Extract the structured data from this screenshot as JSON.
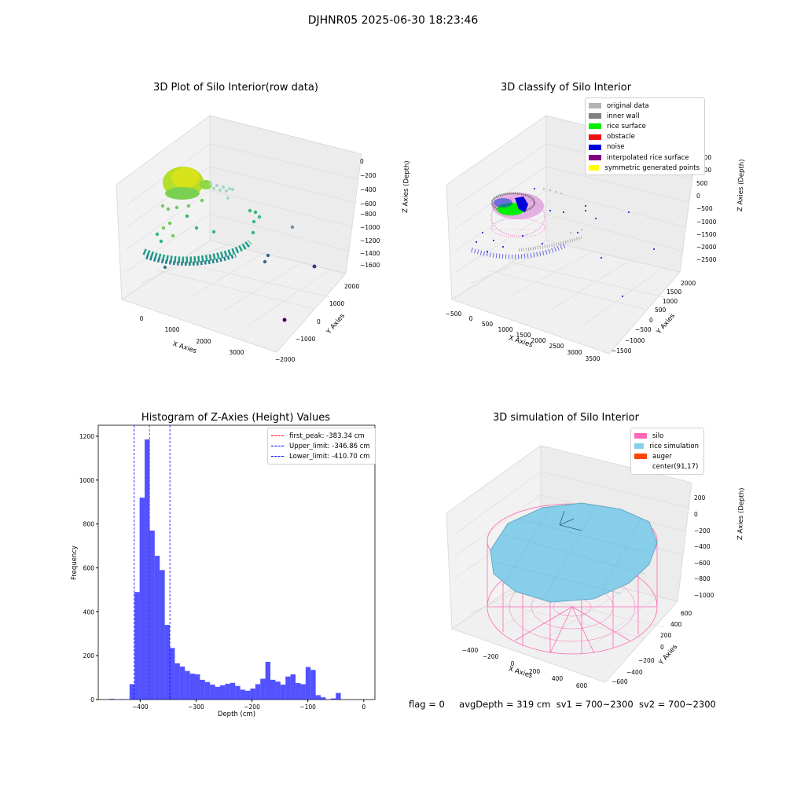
{
  "figure": {
    "title": "DJHNR05 2025-06-30 18:23:46",
    "footer": {
      "flag": "flag = 0",
      "avg_depth": "avgDepth = 319 cm",
      "sv1": "sv1 = 700~2300",
      "sv2": "sv2 = 700~2300"
    }
  },
  "chart_data": [
    {
      "type": "scatter",
      "projection": "3d",
      "title": "3D Plot of Silo Interior(row data)",
      "xlabel": "X Axies",
      "ylabel": "Y Axies",
      "zlabel": "Z Axies (Depth)",
      "x_ticks": [
        "0",
        "1000",
        "2000",
        "3000"
      ],
      "y_ticks": [
        "−2000",
        "−1000",
        "0",
        "1000",
        "2000"
      ],
      "z_ticks": [
        "0",
        "−200",
        "−400",
        "−600",
        "−800",
        "−1000",
        "−1200",
        "−1400",
        "−1600"
      ],
      "colormap": "viridis",
      "legend": null
    },
    {
      "type": "scatter",
      "projection": "3d",
      "title": "3D classify of Silo Interior",
      "xlabel": "X Axies",
      "ylabel": "Y Axies",
      "zlabel": "Z Axies (Depth)",
      "x_ticks": [
        "−500",
        "0",
        "500",
        "1000",
        "1500",
        "2000",
        "2500",
        "3000",
        "3500"
      ],
      "y_ticks": [
        "−1500",
        "−1000",
        "−500",
        "0",
        "500",
        "1000",
        "1500",
        "2000"
      ],
      "z_ticks": [
        "1500",
        "1000",
        "500",
        "0",
        "−500",
        "−1000",
        "−1500",
        "−2000",
        "−2500"
      ],
      "legend_placement": "top-right",
      "series": [
        {
          "name": "original data",
          "color": "#b3b3b3"
        },
        {
          "name": "inner wall",
          "color": "#808080"
        },
        {
          "name": "rice surface",
          "color": "#00ee00"
        },
        {
          "name": "obstacle",
          "color": "#ee1111"
        },
        {
          "name": "noise",
          "color": "#0000dd"
        },
        {
          "name": "interpolated rice surface",
          "color": "#800080"
        },
        {
          "name": "symmetric generated points",
          "color": "#ffff00"
        }
      ]
    },
    {
      "type": "bar",
      "title": "Histogram of Z-Axies (Height) Values",
      "xlabel": "Depth (cm)",
      "ylabel": "Frequency",
      "xlim": [
        -475,
        20
      ],
      "ylim": [
        0,
        1250
      ],
      "x_ticks": [
        "−400",
        "−300",
        "−200",
        "−100",
        "0"
      ],
      "y_ticks": [
        "0",
        "200",
        "400",
        "600",
        "800",
        "1000",
        "1200"
      ],
      "bar_color": "#0000ff",
      "bins": [
        {
          "x0": -455,
          "x1": -446,
          "count": 3
        },
        {
          "x0": -437,
          "x1": -428,
          "count": 2
        },
        {
          "x0": -419,
          "x1": -410,
          "count": 70
        },
        {
          "x0": -410,
          "x1": -401,
          "count": 490
        },
        {
          "x0": -401,
          "x1": -392,
          "count": 920
        },
        {
          "x0": -392,
          "x1": -383,
          "count": 1185
        },
        {
          "x0": -383,
          "x1": -374,
          "count": 770
        },
        {
          "x0": -374,
          "x1": -365,
          "count": 655
        },
        {
          "x0": -365,
          "x1": -356,
          "count": 590
        },
        {
          "x0": -356,
          "x1": -347,
          "count": 340
        },
        {
          "x0": -347,
          "x1": -338,
          "count": 235
        },
        {
          "x0": -338,
          "x1": -329,
          "count": 165
        },
        {
          "x0": -329,
          "x1": -320,
          "count": 150
        },
        {
          "x0": -320,
          "x1": -311,
          "count": 130
        },
        {
          "x0": -311,
          "x1": -302,
          "count": 118
        },
        {
          "x0": -302,
          "x1": -293,
          "count": 115
        },
        {
          "x0": -293,
          "x1": -284,
          "count": 90
        },
        {
          "x0": -284,
          "x1": -275,
          "count": 80
        },
        {
          "x0": -275,
          "x1": -266,
          "count": 68
        },
        {
          "x0": -266,
          "x1": -257,
          "count": 58
        },
        {
          "x0": -257,
          "x1": -248,
          "count": 65
        },
        {
          "x0": -248,
          "x1": -239,
          "count": 72
        },
        {
          "x0": -239,
          "x1": -230,
          "count": 76
        },
        {
          "x0": -230,
          "x1": -221,
          "count": 62
        },
        {
          "x0": -221,
          "x1": -212,
          "count": 45
        },
        {
          "x0": -212,
          "x1": -203,
          "count": 40
        },
        {
          "x0": -203,
          "x1": -194,
          "count": 50
        },
        {
          "x0": -194,
          "x1": -185,
          "count": 70
        },
        {
          "x0": -185,
          "x1": -176,
          "count": 95
        },
        {
          "x0": -176,
          "x1": -167,
          "count": 172
        },
        {
          "x0": -167,
          "x1": -158,
          "count": 90
        },
        {
          "x0": -158,
          "x1": -149,
          "count": 82
        },
        {
          "x0": -149,
          "x1": -140,
          "count": 68
        },
        {
          "x0": -140,
          "x1": -131,
          "count": 105
        },
        {
          "x0": -131,
          "x1": -122,
          "count": 115
        },
        {
          "x0": -122,
          "x1": -113,
          "count": 75
        },
        {
          "x0": -113,
          "x1": -104,
          "count": 70
        },
        {
          "x0": -104,
          "x1": -95,
          "count": 148
        },
        {
          "x0": -95,
          "x1": -86,
          "count": 135
        },
        {
          "x0": -86,
          "x1": -77,
          "count": 20
        },
        {
          "x0": -77,
          "x1": -68,
          "count": 10
        },
        {
          "x0": -59,
          "x1": -50,
          "count": 5
        },
        {
          "x0": -50,
          "x1": -41,
          "count": 30
        }
      ],
      "vlines": [
        {
          "label": "first_peak: -383.34 cm",
          "x": -383.34,
          "color": "#ff0000"
        },
        {
          "label": "Upper_limit: -346.86 cm",
          "x": -346.86,
          "color": "#0000ff"
        },
        {
          "label": "Lower_limit: -410.70 cm",
          "x": -410.7,
          "color": "#0000ff"
        }
      ],
      "legend_placement": "top-right"
    },
    {
      "type": "surface",
      "projection": "3d",
      "title": "3D simulation of Silo Interior",
      "xlabel": "X Axies",
      "ylabel": "Y Axies",
      "zlabel": "Z Axies (Depth)",
      "x_ticks": [
        "−400",
        "−200",
        "0",
        "200",
        "400",
        "600"
      ],
      "y_ticks": [
        "−600",
        "−400",
        "−200",
        "0",
        "200",
        "400",
        "600"
      ],
      "z_ticks": [
        "200",
        "0",
        "−200",
        "−400",
        "−600",
        "−800",
        "−1000"
      ],
      "legend_placement": "top-right",
      "series": [
        {
          "name": "silo",
          "color": "#ff69b4"
        },
        {
          "name": "rice simulation",
          "color": "#87ceeb"
        },
        {
          "name": "auger",
          "color": "#ff4500"
        },
        {
          "name": "center(91,17)",
          "color": ""
        }
      ]
    }
  ]
}
